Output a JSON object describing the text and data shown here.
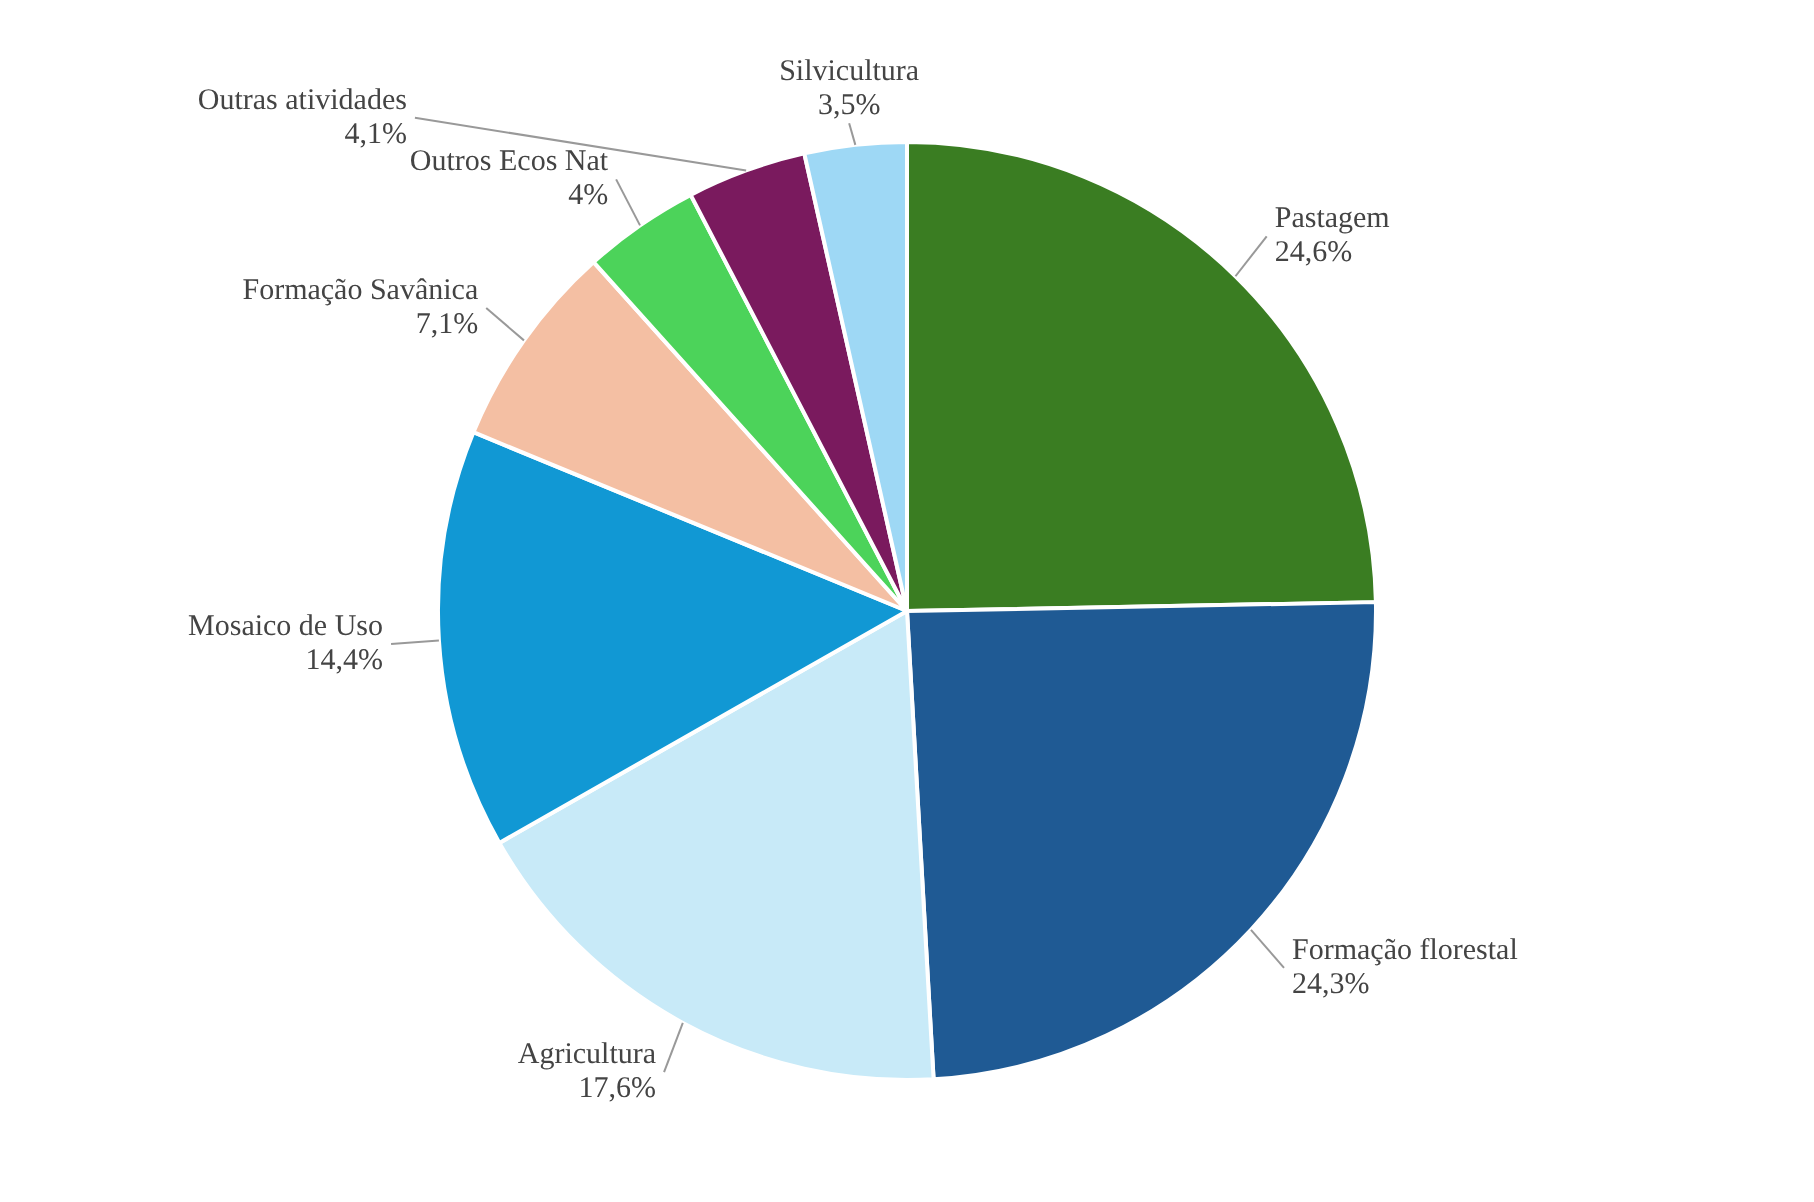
{
  "chart_data": {
    "type": "pie",
    "categories": [
      "Pastagem",
      "Formação florestal",
      "Agricultura",
      "Mosaico de Uso",
      "Formação Savânica",
      "Outros Ecos Nat",
      "Outras atividades",
      "Silvicultura"
    ],
    "values": [
      24.6,
      24.3,
      17.6,
      14.4,
      7.1,
      4,
      4.1,
      3.5
    ],
    "value_labels": [
      "24,6%",
      "24,3%",
      "17,6%",
      "14,4%",
      "7,1%",
      "4%",
      "4,1%",
      "3,5%"
    ],
    "colors": [
      "#3a7d22",
      "#1f5a94",
      "#c8eaf8",
      "#1198d4",
      "#f4bfa3",
      "#4cd35a",
      "#7a1a5e",
      "#9ed8f5"
    ],
    "legend": false
  }
}
